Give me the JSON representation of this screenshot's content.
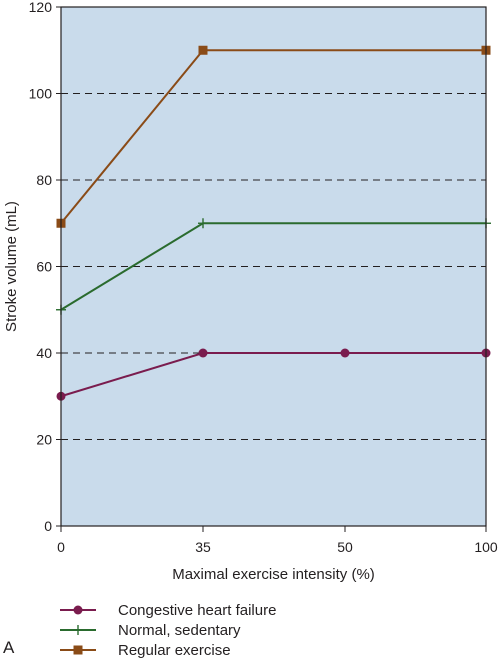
{
  "panel_label": "A",
  "chart_data": {
    "type": "line",
    "xlabel": "Maximal exercise intensity (%)",
    "ylabel": "Stroke volume (mL)",
    "categories": [
      "0",
      "35",
      "50",
      "100"
    ],
    "ylim": [
      0,
      120
    ],
    "yticks": [
      0,
      20,
      40,
      60,
      80,
      100,
      120
    ],
    "grid": "horizontal dashed",
    "legend_position": "bottom",
    "background_color": "#c9dbeb",
    "series": [
      {
        "name": "Congestive heart failure",
        "values": [
          30,
          40,
          40,
          40
        ],
        "color": "#7a1c4e",
        "marker": "circle"
      },
      {
        "name": "Normal, sedentary",
        "values": [
          50,
          70,
          null,
          70
        ],
        "color": "#2a6b2e",
        "marker": "plus"
      },
      {
        "name": "Regular exercise",
        "values": [
          70,
          110,
          null,
          110
        ],
        "color": "#8a4b17",
        "marker": "square"
      }
    ]
  }
}
